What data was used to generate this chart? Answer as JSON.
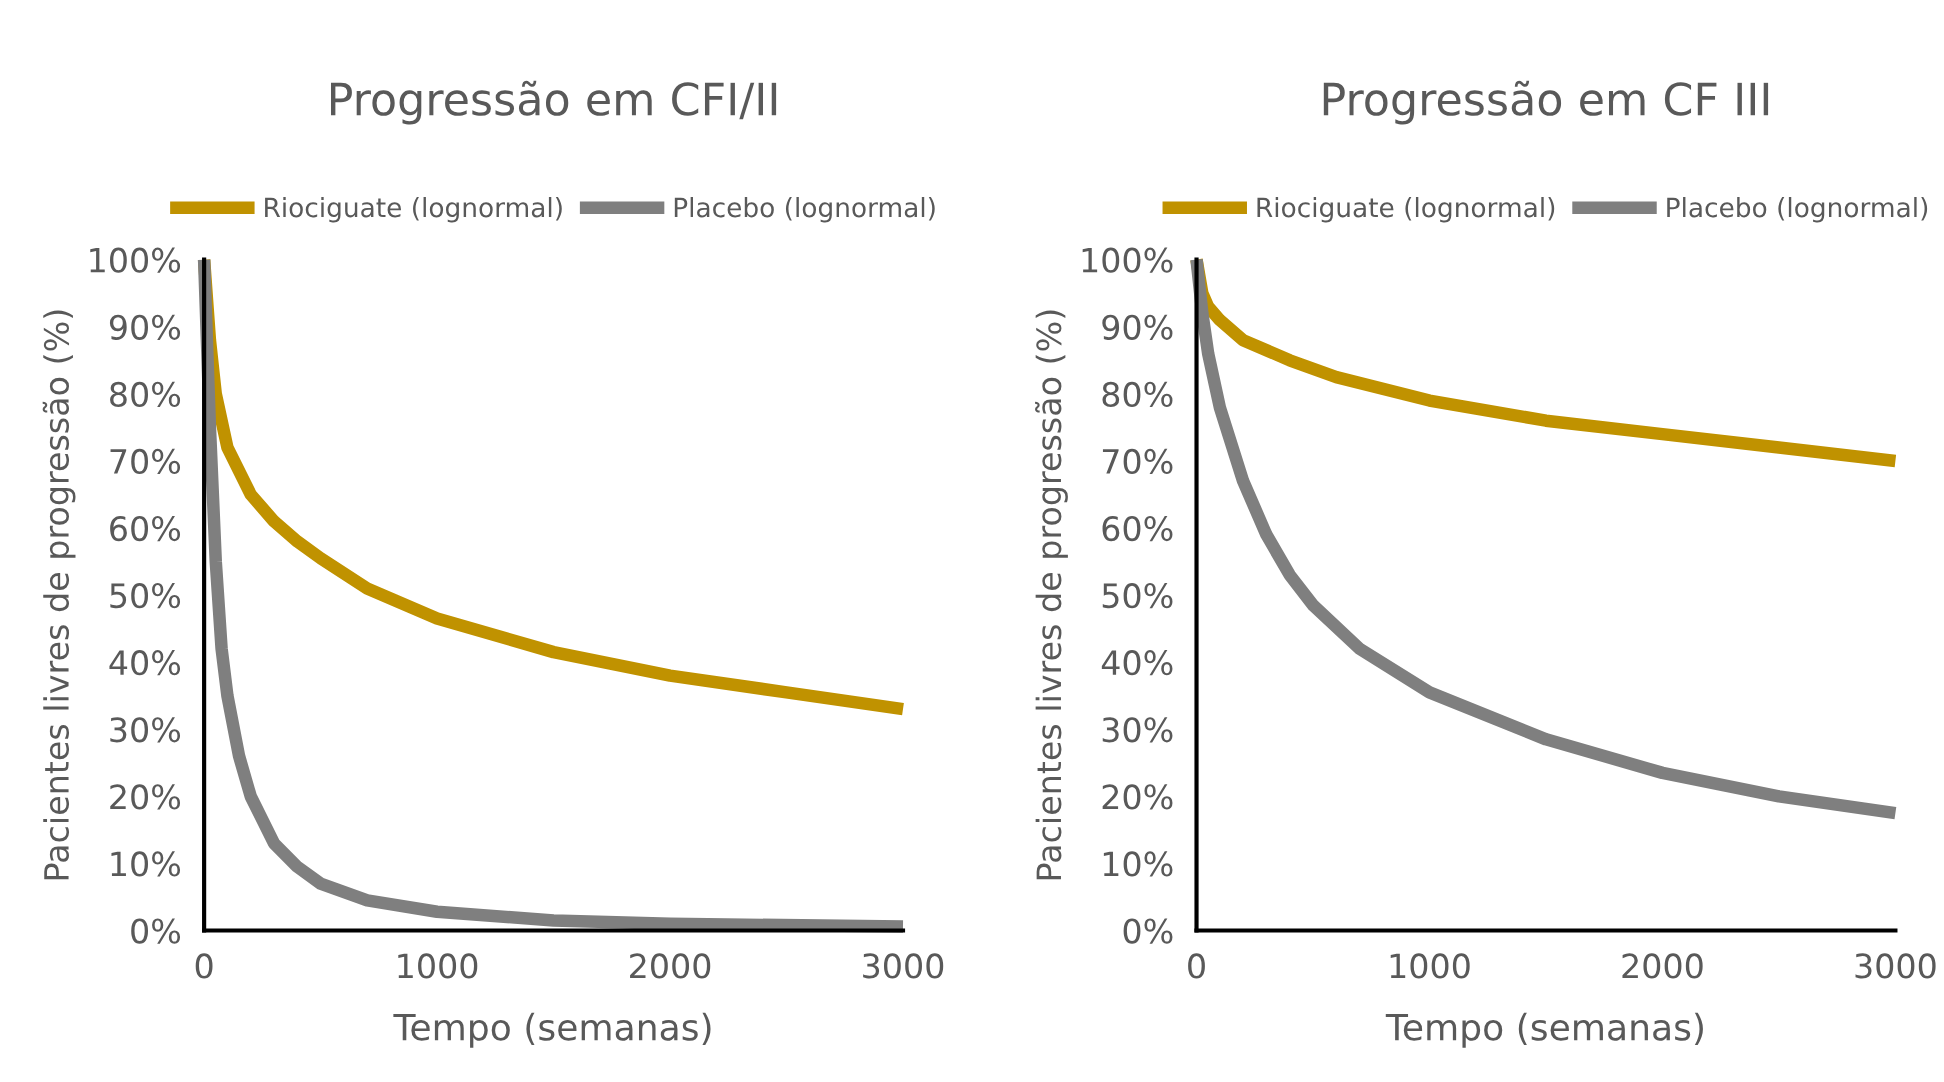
{
  "chart_data": [
    {
      "type": "line",
      "title": "Progressão em CFI/II",
      "xlabel": "Tempo (semanas)",
      "ylabel": "Pacientes livres de progressão (%)",
      "legend": "top",
      "grid": false,
      "marker": "none",
      "line_style": "solid",
      "xlim": [
        0,
        3000
      ],
      "xticks": [
        0,
        1000,
        2000,
        3000
      ],
      "ylim": [
        0,
        100
      ],
      "yticks": [
        {
          "value": 0,
          "label": "0%"
        },
        {
          "value": 10,
          "label": "10%"
        },
        {
          "value": 20,
          "label": "20%"
        },
        {
          "value": 30,
          "label": "30%"
        },
        {
          "value": 40,
          "label": "40%"
        },
        {
          "value": 50,
          "label": "50%"
        },
        {
          "value": 60,
          "label": "60%"
        },
        {
          "value": 70,
          "label": "70%"
        },
        {
          "value": 80,
          "label": "80%"
        },
        {
          "value": 90,
          "label": "90%"
        },
        {
          "value": 100,
          "label": "100%"
        }
      ],
      "series": [
        {
          "name": "Riociguate (lognormal)",
          "color": "#c09200",
          "x": [
            0,
            25,
            50,
            100,
            200,
            300,
            400,
            500,
            700,
            1000,
            1500,
            2000,
            2500,
            3000
          ],
          "values": [
            100,
            88,
            80,
            72,
            65,
            61,
            58,
            55.5,
            51,
            46.5,
            41.5,
            38,
            35.5,
            33
          ]
        },
        {
          "name": "Placebo (lognormal)",
          "color": "#7f7f7f",
          "x": [
            0,
            25,
            50,
            75,
            100,
            150,
            200,
            300,
            400,
            500,
            700,
            1000,
            1500,
            2000,
            3000
          ],
          "values": [
            100,
            75,
            55,
            42,
            35,
            26,
            20,
            13,
            9.5,
            7,
            4.5,
            2.8,
            1.5,
            1,
            0.6
          ]
        }
      ]
    },
    {
      "type": "line",
      "title": "Progressão em CF III",
      "xlabel": "Tempo (semanas)",
      "ylabel": "Pacientes livres de progressão (%)",
      "legend": "top",
      "grid": false,
      "marker": "none",
      "line_style": "solid",
      "xlim": [
        0,
        3000
      ],
      "xticks": [
        0,
        1000,
        2000,
        3000
      ],
      "ylim": [
        0,
        100
      ],
      "yticks": [
        {
          "value": 0,
          "label": "0%"
        },
        {
          "value": 10,
          "label": "10%"
        },
        {
          "value": 20,
          "label": "20%"
        },
        {
          "value": 30,
          "label": "30%"
        },
        {
          "value": 40,
          "label": "40%"
        },
        {
          "value": 50,
          "label": "50%"
        },
        {
          "value": 60,
          "label": "60%"
        },
        {
          "value": 70,
          "label": "70%"
        },
        {
          "value": 80,
          "label": "80%"
        },
        {
          "value": 90,
          "label": "90%"
        },
        {
          "value": 100,
          "label": "100%"
        }
      ],
      "series": [
        {
          "name": "Riociguate (lognormal)",
          "color": "#c09200",
          "x": [
            0,
            25,
            50,
            100,
            200,
            400,
            600,
            1000,
            1500,
            2000,
            2500,
            3000
          ],
          "values": [
            100,
            95,
            93,
            91,
            88,
            85,
            82.5,
            79,
            76,
            74,
            72,
            70
          ]
        },
        {
          "name": "Placebo (lognormal)",
          "color": "#7f7f7f",
          "x": [
            0,
            25,
            50,
            100,
            200,
            300,
            400,
            500,
            700,
            1000,
            1500,
            2000,
            2500,
            3000
          ],
          "values": [
            100,
            92,
            86,
            78,
            67,
            59,
            53,
            48.5,
            42,
            35.5,
            28.5,
            23.5,
            20,
            17.5
          ]
        }
      ]
    }
  ]
}
